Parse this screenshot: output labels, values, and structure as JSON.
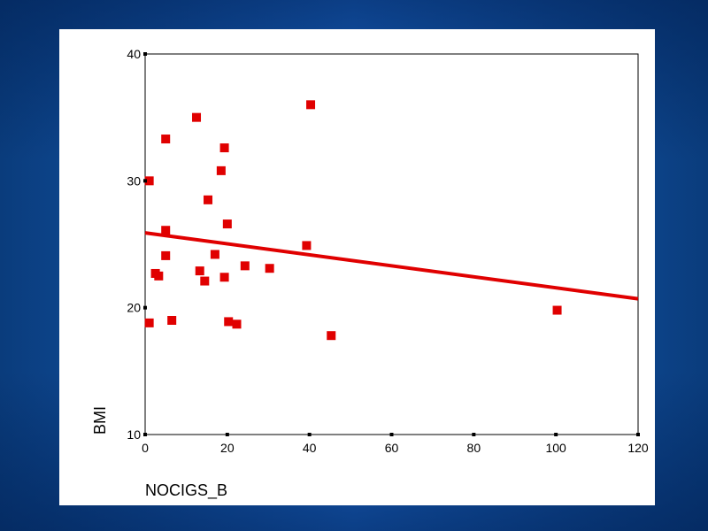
{
  "colors": {
    "marker": "#e00000",
    "fit_line": "#e00000",
    "panel": "#ffffff",
    "background": "#1a66c8"
  },
  "chart_data": {
    "type": "scatter",
    "title": "",
    "xlabel": "NOCIGS_B",
    "ylabel": "BMI",
    "xlim": [
      0,
      120
    ],
    "ylim": [
      10,
      40
    ],
    "x_ticks": [
      0,
      20,
      40,
      60,
      80,
      100,
      120
    ],
    "y_ticks": [
      10,
      20,
      30,
      40
    ],
    "grid": false,
    "legend": "none",
    "series": [
      {
        "points": [
          {
            "x": 1,
            "y": 30.0
          },
          {
            "x": 1,
            "y": 18.8
          },
          {
            "x": 2.5,
            "y": 22.7
          },
          {
            "x": 3.3,
            "y": 22.5
          },
          {
            "x": 5,
            "y": 33.3
          },
          {
            "x": 5,
            "y": 26.1
          },
          {
            "x": 5,
            "y": 24.1
          },
          {
            "x": 6.5,
            "y": 19.0
          },
          {
            "x": 12.5,
            "y": 35.0
          },
          {
            "x": 13.3,
            "y": 22.9
          },
          {
            "x": 14.5,
            "y": 22.1
          },
          {
            "x": 15.3,
            "y": 28.5
          },
          {
            "x": 17,
            "y": 24.2
          },
          {
            "x": 18.5,
            "y": 30.8
          },
          {
            "x": 19.3,
            "y": 32.6
          },
          {
            "x": 19.3,
            "y": 22.4
          },
          {
            "x": 20,
            "y": 26.6
          },
          {
            "x": 20.3,
            "y": 18.9
          },
          {
            "x": 22.3,
            "y": 18.7
          },
          {
            "x": 24.3,
            "y": 23.3
          },
          {
            "x": 30.3,
            "y": 23.1
          },
          {
            "x": 39.3,
            "y": 24.9
          },
          {
            "x": 40.3,
            "y": 36.0
          },
          {
            "x": 45.3,
            "y": 17.8
          },
          {
            "x": 100.3,
            "y": 19.8
          }
        ]
      }
    ],
    "fit_line": {
      "x0": 0,
      "y0": 25.9,
      "x1": 120,
      "y1": 20.7
    }
  }
}
